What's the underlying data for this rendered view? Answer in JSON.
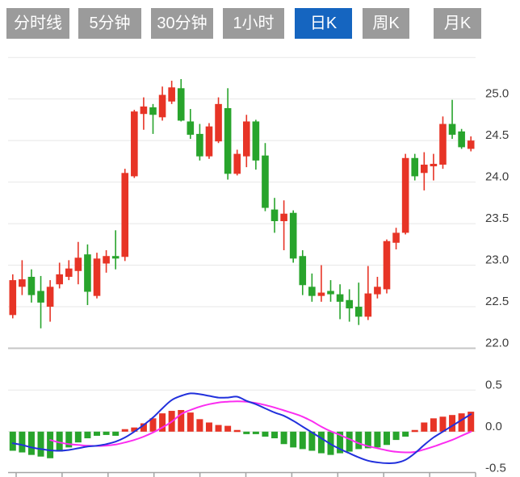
{
  "toolbar": {
    "buttons": [
      {
        "label": "分时线",
        "active": false
      },
      {
        "label": "5分钟",
        "active": false
      },
      {
        "label": "30分钟",
        "active": false
      },
      {
        "label": "1小时",
        "active": false
      },
      {
        "label": "日K",
        "active": true
      },
      {
        "label": "周K",
        "active": false
      },
      {
        "label": "月K",
        "active": false
      }
    ]
  },
  "colors": {
    "background": "#ffffff",
    "tab_bg": "#9b9b9b",
    "tab_active_bg": "#1565c0",
    "tab_text": "#ffffff",
    "up": "#e73426",
    "down": "#28a42c",
    "dif_line": "#2130dc",
    "dea_line": "#fb2df0",
    "grid": "#e7e7e7",
    "grid_dark": "#c6c6c6",
    "axis": "#a3a3a3",
    "label": "#3d3d3d"
  },
  "chart_data": {
    "type": "candlestick",
    "title": "",
    "legend_position": "none",
    "grid": true,
    "panels": [
      {
        "name": "price",
        "ylim": [
          22.0,
          25.5
        ],
        "yticks": [
          {
            "label": "25.0",
            "value": 25.0
          },
          {
            "label": "24.5",
            "value": 24.5
          },
          {
            "label": "24.0",
            "value": 24.0
          },
          {
            "label": "23.5",
            "value": 23.5
          },
          {
            "label": "23.0",
            "value": 23.0
          },
          {
            "label": "22.5",
            "value": 22.5
          },
          {
            "label": "22.0",
            "value": 22.0
          }
        ],
        "ohlc_order": "o,h,l,c",
        "candles": [
          [
            22.4,
            22.89,
            22.36,
            22.82
          ],
          [
            22.74,
            23.06,
            22.64,
            22.83
          ],
          [
            22.86,
            22.95,
            22.55,
            22.64
          ],
          [
            22.69,
            22.87,
            22.24,
            22.55
          ],
          [
            22.5,
            22.82,
            22.32,
            22.74
          ],
          [
            22.77,
            23.03,
            22.72,
            22.89
          ],
          [
            22.86,
            23.06,
            22.82,
            22.96
          ],
          [
            22.93,
            23.28,
            22.77,
            23.09
          ],
          [
            23.13,
            23.25,
            22.52,
            22.68
          ],
          [
            22.63,
            23.15,
            22.6,
            23.08
          ],
          [
            23.02,
            23.18,
            22.91,
            23.11
          ],
          [
            23.11,
            23.42,
            22.95,
            23.08
          ],
          [
            23.1,
            24.16,
            23.05,
            24.11
          ],
          [
            24.07,
            24.87,
            24.05,
            24.85
          ],
          [
            24.82,
            25.02,
            24.63,
            24.91
          ],
          [
            24.9,
            24.94,
            24.58,
            24.81
          ],
          [
            24.78,
            25.15,
            24.74,
            25.05
          ],
          [
            24.97,
            25.22,
            24.94,
            25.14
          ],
          [
            25.13,
            25.24,
            24.73,
            24.74
          ],
          [
            24.73,
            24.88,
            24.52,
            24.57
          ],
          [
            24.58,
            24.7,
            24.26,
            24.31
          ],
          [
            24.31,
            24.71,
            24.28,
            24.67
          ],
          [
            24.49,
            25.02,
            24.47,
            24.94
          ],
          [
            24.89,
            25.13,
            24.03,
            24.1
          ],
          [
            24.1,
            24.39,
            24.08,
            24.34
          ],
          [
            24.31,
            24.81,
            24.18,
            24.73
          ],
          [
            24.73,
            24.75,
            24.15,
            24.26
          ],
          [
            24.32,
            24.47,
            23.65,
            23.69
          ],
          [
            23.67,
            23.81,
            23.39,
            23.53
          ],
          [
            23.53,
            23.78,
            23.18,
            23.62
          ],
          [
            23.63,
            23.66,
            23.03,
            23.08
          ],
          [
            23.11,
            23.18,
            22.64,
            22.76
          ],
          [
            22.74,
            22.9,
            22.56,
            22.63
          ],
          [
            22.63,
            23.0,
            22.56,
            22.67
          ],
          [
            22.69,
            22.82,
            22.56,
            22.65
          ],
          [
            22.65,
            22.77,
            22.35,
            22.56
          ],
          [
            22.58,
            22.71,
            22.32,
            22.48
          ],
          [
            22.5,
            22.79,
            22.28,
            22.38
          ],
          [
            22.38,
            22.99,
            22.34,
            22.66
          ],
          [
            22.65,
            22.86,
            22.6,
            22.74
          ],
          [
            22.71,
            23.31,
            22.66,
            23.29
          ],
          [
            23.27,
            23.45,
            23.19,
            23.39
          ],
          [
            23.39,
            24.34,
            23.37,
            24.29
          ],
          [
            24.29,
            24.34,
            24.02,
            24.07
          ],
          [
            24.11,
            24.36,
            23.9,
            24.21
          ],
          [
            24.19,
            24.34,
            24.02,
            24.22
          ],
          [
            24.21,
            24.79,
            24.16,
            24.7
          ],
          [
            24.7,
            24.99,
            24.52,
            24.57
          ],
          [
            24.61,
            24.64,
            24.4,
            24.42
          ],
          [
            24.4,
            24.55,
            24.37,
            24.5
          ]
        ]
      },
      {
        "name": "macd",
        "ylim": [
          -0.5,
          0.5
        ],
        "yticks": [
          {
            "label": "0.5",
            "value": 0.5
          },
          {
            "label": "0.0",
            "value": 0.0
          },
          {
            "label": "-0.5",
            "value": -0.5
          }
        ],
        "histogram": [
          -0.23,
          -0.25,
          -0.28,
          -0.3,
          -0.32,
          -0.24,
          -0.19,
          -0.13,
          -0.08,
          -0.05,
          -0.04,
          -0.05,
          0.03,
          0.05,
          0.1,
          0.16,
          0.22,
          0.25,
          0.26,
          0.23,
          0.15,
          0.11,
          0.08,
          0.07,
          0.02,
          -0.03,
          -0.03,
          -0.06,
          -0.08,
          -0.15,
          -0.19,
          -0.21,
          -0.23,
          -0.26,
          -0.28,
          -0.26,
          -0.24,
          -0.21,
          -0.2,
          -0.19,
          -0.16,
          -0.1,
          -0.06,
          0.02,
          0.11,
          0.16,
          0.18,
          0.2,
          0.22,
          0.24
        ],
        "series": [
          {
            "name": "DIF",
            "values": [
              -0.14,
              -0.16,
              -0.19,
              -0.21,
              -0.225,
              -0.23,
              -0.22,
              -0.2,
              -0.18,
              -0.17,
              -0.15,
              -0.12,
              -0.07,
              0.0,
              0.08,
              0.17,
              0.28,
              0.38,
              0.43,
              0.46,
              0.45,
              0.43,
              0.41,
              0.41,
              0.42,
              0.37,
              0.33,
              0.28,
              0.23,
              0.19,
              0.13,
              0.06,
              -0.01,
              -0.08,
              -0.15,
              -0.21,
              -0.26,
              -0.31,
              -0.35,
              -0.37,
              -0.38,
              -0.375,
              -0.34,
              -0.26,
              -0.16,
              -0.07,
              0.0,
              0.07,
              0.14,
              0.21
            ]
          },
          {
            "name": "DEA",
            "values": [
              null,
              null,
              null,
              null,
              -0.1,
              -0.13,
              -0.15,
              -0.16,
              -0.17,
              -0.172,
              -0.168,
              -0.155,
              -0.13,
              -0.1,
              -0.06,
              -0.01,
              0.05,
              0.12,
              0.21,
              0.26,
              0.3,
              0.33,
              0.35,
              0.36,
              0.365,
              0.36,
              0.345,
              0.32,
              0.29,
              0.255,
              0.22,
              0.18,
              0.125,
              0.06,
              0.005,
              -0.04,
              -0.09,
              -0.14,
              -0.175,
              -0.2,
              -0.225,
              -0.243,
              -0.25,
              -0.245,
              -0.215,
              -0.18,
              -0.14,
              -0.1,
              -0.05,
              0.0
            ]
          }
        ],
        "x_axis_tick_count": 11
      }
    ]
  }
}
